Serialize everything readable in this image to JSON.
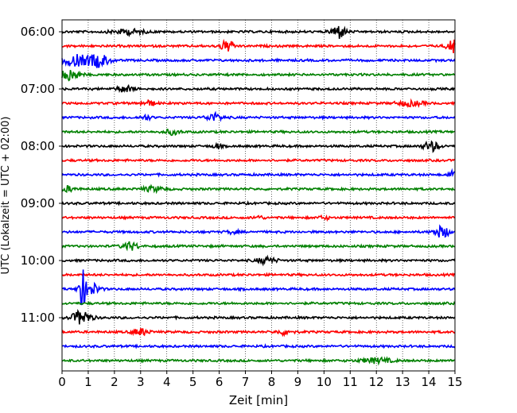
{
  "chart_data": {
    "type": "line",
    "title": "",
    "xlabel": "Zeit  [min]",
    "ylabel": "UTC (Lokalzeit = UTC + 02:00)",
    "xlim": [
      0,
      15
    ],
    "x_ticks": [
      "0",
      "1",
      "2",
      "3",
      "4",
      "5",
      "6",
      "7",
      "8",
      "9",
      "10",
      "11",
      "12",
      "13",
      "14",
      "15"
    ],
    "grid_x": "dotted",
    "trace_colors": [
      "#000000",
      "#ff0000",
      "#0000ff",
      "#008000"
    ],
    "y_ticks": [
      {
        "label": "06:00",
        "trace_index": 0
      },
      {
        "label": "07:00",
        "trace_index": 4
      },
      {
        "label": "08:00",
        "trace_index": 8
      },
      {
        "label": "09:00",
        "trace_index": 12
      },
      {
        "label": "10:00",
        "trace_index": 16
      },
      {
        "label": "11:00",
        "trace_index": 20
      }
    ],
    "series": [
      {
        "start": "06:00",
        "color": "#000000",
        "bursts": [
          {
            "t": 10.55,
            "amp": 9,
            "w": 0.25
          },
          {
            "t": 2.5,
            "amp": 3,
            "w": 0.6
          }
        ]
      },
      {
        "start": "06:15",
        "color": "#ff0000",
        "bursts": [
          {
            "t": 6.3,
            "amp": 7,
            "w": 0.25
          },
          {
            "t": 14.9,
            "amp": 8,
            "w": 0.2
          }
        ]
      },
      {
        "start": "06:30",
        "color": "#0000ff",
        "bursts": [
          {
            "t": 0.5,
            "amp": 7,
            "w": 0.5
          },
          {
            "t": 1.4,
            "amp": 8,
            "w": 0.4
          }
        ]
      },
      {
        "start": "06:45",
        "color": "#008000",
        "bursts": [
          {
            "t": 0.3,
            "amp": 7,
            "w": 0.35
          }
        ]
      },
      {
        "start": "07:00",
        "color": "#000000",
        "bursts": [
          {
            "t": 2.4,
            "amp": 4,
            "w": 0.3
          }
        ]
      },
      {
        "start": "07:15",
        "color": "#ff0000",
        "bursts": [
          {
            "t": 3.3,
            "amp": 3,
            "w": 0.3
          },
          {
            "t": 13.3,
            "amp": 3,
            "w": 0.5
          }
        ]
      },
      {
        "start": "07:30",
        "color": "#0000ff",
        "bursts": [
          {
            "t": 5.8,
            "amp": 5,
            "w": 0.3
          },
          {
            "t": 3.2,
            "amp": 3,
            "w": 0.2
          }
        ]
      },
      {
        "start": "07:45",
        "color": "#008000",
        "bursts": [
          {
            "t": 4.2,
            "amp": 3,
            "w": 0.3
          }
        ]
      },
      {
        "start": "08:00",
        "color": "#000000",
        "bursts": [
          {
            "t": 14.1,
            "amp": 6,
            "w": 0.3
          },
          {
            "t": 5.9,
            "amp": 3,
            "w": 0.15
          }
        ]
      },
      {
        "start": "08:15",
        "color": "#ff0000",
        "bursts": []
      },
      {
        "start": "08:30",
        "color": "#0000ff",
        "bursts": [
          {
            "t": 14.9,
            "amp": 4,
            "w": 0.15
          }
        ]
      },
      {
        "start": "08:45",
        "color": "#008000",
        "bursts": [
          {
            "t": 0.2,
            "amp": 3,
            "w": 0.3
          },
          {
            "t": 3.5,
            "amp": 3,
            "w": 0.4
          }
        ]
      },
      {
        "start": "09:00",
        "color": "#000000",
        "bursts": []
      },
      {
        "start": "09:15",
        "color": "#ff0000",
        "bursts": [
          {
            "t": 7.5,
            "amp": 2,
            "w": 0.2
          },
          {
            "t": 10.0,
            "amp": 2,
            "w": 0.2
          }
        ]
      },
      {
        "start": "09:30",
        "color": "#0000ff",
        "bursts": [
          {
            "t": 14.5,
            "amp": 7,
            "w": 0.3
          },
          {
            "t": 6.5,
            "amp": 2,
            "w": 0.2
          }
        ]
      },
      {
        "start": "09:45",
        "color": "#008000",
        "bursts": [
          {
            "t": 2.6,
            "amp": 5,
            "w": 0.3
          }
        ]
      },
      {
        "start": "10:00",
        "color": "#000000",
        "bursts": [
          {
            "t": 7.8,
            "amp": 4,
            "w": 0.35
          }
        ]
      },
      {
        "start": "10:15",
        "color": "#ff0000",
        "bursts": []
      },
      {
        "start": "10:30",
        "color": "#0000ff",
        "bursts": [
          {
            "t": 0.75,
            "amp": 26,
            "w": 0.12
          },
          {
            "t": 1.1,
            "amp": 8,
            "w": 0.3
          }
        ]
      },
      {
        "start": "10:45",
        "color": "#008000",
        "bursts": []
      },
      {
        "start": "11:00",
        "color": "#000000",
        "bursts": [
          {
            "t": 0.75,
            "amp": 9,
            "w": 0.35
          }
        ]
      },
      {
        "start": "11:15",
        "color": "#ff0000",
        "bursts": [
          {
            "t": 3.0,
            "amp": 4,
            "w": 0.3
          },
          {
            "t": 8.5,
            "amp": 3,
            "w": 0.3
          }
        ]
      },
      {
        "start": "11:30",
        "color": "#0000ff",
        "bursts": []
      },
      {
        "start": "11:45",
        "color": "#008000",
        "bursts": [
          {
            "t": 12.0,
            "amp": 3,
            "w": 0.6
          }
        ]
      }
    ]
  }
}
